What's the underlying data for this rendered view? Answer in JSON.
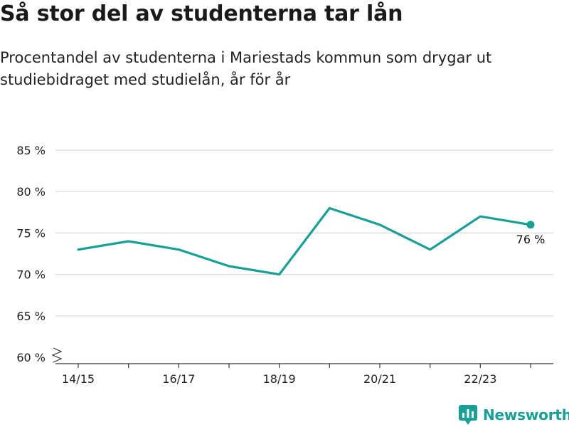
{
  "title": "Så stor del av studenterna tar lån",
  "subtitle": "Procentandel av studenterna i Mariestads kommun som drygar ut studiebidraget med studielån, år för år",
  "brand": {
    "name": "Newsworthy"
  },
  "colors": {
    "line": "#16a097",
    "grid": "#d9d9d9",
    "axis": "#333333",
    "brand": "#16a097"
  },
  "chart_data": {
    "type": "line",
    "title": "Så stor del av studenterna tar lån",
    "xlabel": "",
    "ylabel": "",
    "x": [
      "14/15",
      "15/16",
      "16/17",
      "17/18",
      "18/19",
      "19/20",
      "20/21",
      "21/22",
      "22/23",
      "23/24"
    ],
    "x_tick_labels": [
      "14/15",
      "16/17",
      "18/19",
      "20/21",
      "22/23"
    ],
    "y_ticks": [
      60,
      65,
      70,
      75,
      80,
      85
    ],
    "y_tick_labels": [
      "60 %",
      "65 %",
      "70 %",
      "75 %",
      "80 %",
      "85 %"
    ],
    "ylim": [
      60,
      85
    ],
    "y_axis_break": true,
    "grid": true,
    "series": [
      {
        "values": [
          73,
          74,
          73,
          71,
          70,
          78,
          76,
          73,
          77,
          76
        ]
      }
    ],
    "end_label": "76 %"
  }
}
